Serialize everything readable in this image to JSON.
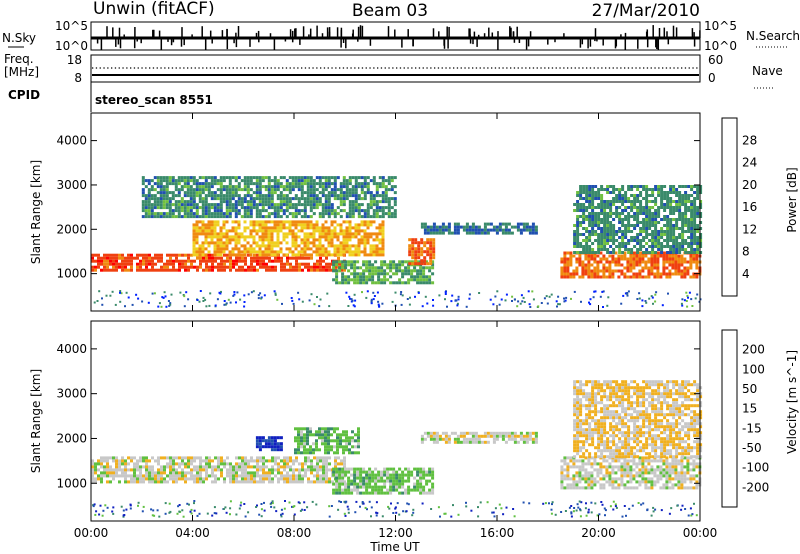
{
  "header": {
    "station": "Unwin (fitACF)",
    "beam": "Beam 03",
    "date": "27/Mar/2010"
  },
  "noise_panel": {
    "left_label": "N.Sky",
    "right_label": "N.Search",
    "left_ticks": [
      "10^5",
      "10^0"
    ],
    "right_ticks": [
      "10^5",
      "10^0"
    ]
  },
  "freq_panel": {
    "left_label_line1": "Freq.",
    "left_label_line2": "[MHz]",
    "right_label": "Nave",
    "left_ticks": [
      "18",
      "8"
    ],
    "right_ticks": [
      "60",
      "0"
    ]
  },
  "cpid_panel": {
    "label": "CPID",
    "text": "stereo_scan 8551"
  },
  "x_axis": {
    "label": "Time UT",
    "ticks": [
      "00:00",
      "04:00",
      "08:00",
      "12:00",
      "16:00",
      "20:00",
      "00:00"
    ]
  },
  "power_colorbar": {
    "label": "Power [dB]",
    "ticks": [
      "4",
      "8",
      "12",
      "16",
      "20",
      "24",
      "28"
    ],
    "colors": [
      "#0020ff",
      "#2050b0",
      "#3a8a6a",
      "#70c040",
      "#f0d020",
      "#f08a10",
      "#f04010",
      "#ff0000"
    ]
  },
  "velocity_colorbar": {
    "label": "Velocity [m s^-1]",
    "ticks": [
      "200",
      "100",
      "50",
      "15",
      "-15",
      "-50",
      "-100",
      "-200"
    ],
    "colors": [
      "#1020c0",
      "#2050b0",
      "#3a8a6a",
      "#60c040",
      "#c8c8c8",
      "#f0b020",
      "#f08010",
      "#f04010",
      "#ff0000"
    ]
  },
  "chart_data": [
    {
      "type": "heatmap",
      "name": "Power",
      "xlabel": "Time UT",
      "ylabel": "Slant Range [km]",
      "xlim": [
        0,
        24
      ],
      "ylim": [
        180,
        4600
      ],
      "y_ticks": [
        1000,
        2000,
        3000,
        4000
      ],
      "colorbar_label": "Power [dB]",
      "colorbar_range": [
        0,
        32
      ],
      "echo_regions": [
        {
          "t_start": 0.0,
          "t_end": 10.0,
          "range_start": 1050,
          "range_end": 1450,
          "power_db": 26
        },
        {
          "t_start": 4.0,
          "t_end": 11.5,
          "range_start": 1400,
          "range_end": 2200,
          "power_db": 20
        },
        {
          "t_start": 2.0,
          "t_end": 12.0,
          "range_start": 2300,
          "range_end": 3200,
          "power_db": 10
        },
        {
          "t_start": 9.5,
          "t_end": 13.5,
          "range_start": 800,
          "range_end": 1300,
          "power_db": 12
        },
        {
          "t_start": 12.5,
          "t_end": 13.5,
          "range_start": 1200,
          "range_end": 1800,
          "power_db": 24
        },
        {
          "t_start": 13.0,
          "t_end": 17.5,
          "range_start": 1900,
          "range_end": 2150,
          "power_db": 8
        },
        {
          "t_start": 18.5,
          "t_end": 24.0,
          "range_start": 900,
          "range_end": 1500,
          "power_db": 24
        },
        {
          "t_start": 19.0,
          "t_end": 24.0,
          "range_start": 1500,
          "range_end": 3000,
          "power_db": 10
        }
      ]
    },
    {
      "type": "heatmap",
      "name": "Velocity",
      "xlabel": "Time UT",
      "ylabel": "Slant Range [km]",
      "xlim": [
        0,
        24
      ],
      "ylim": [
        180,
        4600
      ],
      "y_ticks": [
        1000,
        2000,
        3000,
        4000
      ],
      "colorbar_label": "Velocity [m s^-1]",
      "colorbar_range": [
        -250,
        250
      ],
      "echo_regions": [
        {
          "t_start": 0.0,
          "t_end": 10.0,
          "range_start": 1050,
          "range_end": 1600,
          "velocity": 0
        },
        {
          "t_start": 6.5,
          "t_end": 7.5,
          "range_start": 1750,
          "range_end": 2050,
          "velocity": -200
        },
        {
          "t_start": 8.0,
          "t_end": 10.5,
          "range_start": 1650,
          "range_end": 2250,
          "velocity": -60
        },
        {
          "t_start": 9.5,
          "t_end": 13.5,
          "range_start": 800,
          "range_end": 1350,
          "velocity": -50
        },
        {
          "t_start": 13.0,
          "t_end": 17.5,
          "range_start": 1900,
          "range_end": 2150,
          "velocity": 0
        },
        {
          "t_start": 18.5,
          "t_end": 24.0,
          "range_start": 900,
          "range_end": 1600,
          "velocity": 0
        },
        {
          "t_start": 19.0,
          "t_end": 24.0,
          "range_start": 1600,
          "range_end": 3300,
          "velocity": 30
        }
      ]
    }
  ]
}
